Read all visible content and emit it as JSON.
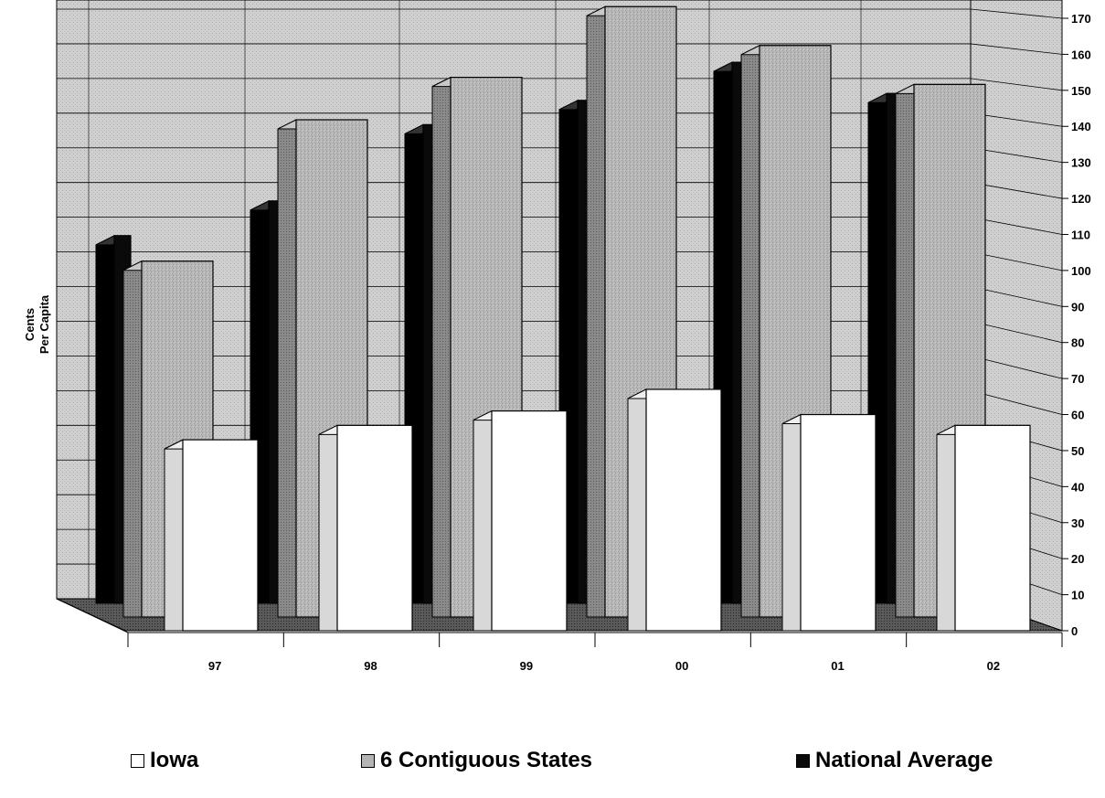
{
  "chart_data": {
    "type": "bar",
    "categories": [
      "97",
      "98",
      "99",
      "00",
      "01",
      "02"
    ],
    "series": [
      {
        "name": "National Average",
        "values": [
          106,
          116,
          138,
          145,
          156,
          147
        ]
      },
      {
        "name": "6 Contiguous States",
        "values": [
          100,
          140,
          152,
          172,
          161,
          150
        ]
      },
      {
        "name": "Iowa",
        "values": [
          53,
          57,
          61,
          67,
          60,
          57
        ]
      }
    ],
    "ylabel": "Cents Per Capita",
    "ylabel_lines": [
      "Cents",
      "Per Capita"
    ],
    "ylim": [
      0,
      170
    ],
    "yticks": [
      0,
      10,
      20,
      30,
      40,
      50,
      60,
      70,
      80,
      90,
      100,
      110,
      120,
      130,
      140,
      150,
      160,
      170
    ],
    "grid": true,
    "legend_position": "bottom",
    "legend": [
      "Iowa",
      "6 Contiguous States",
      "National Average"
    ],
    "colors": {
      "Iowa": "#ffffff",
      "6 Contiguous States": "#b4b4b4",
      "National Average": "#0a0a0a",
      "wall": "#c8c8c8",
      "floor": "#555555"
    }
  }
}
